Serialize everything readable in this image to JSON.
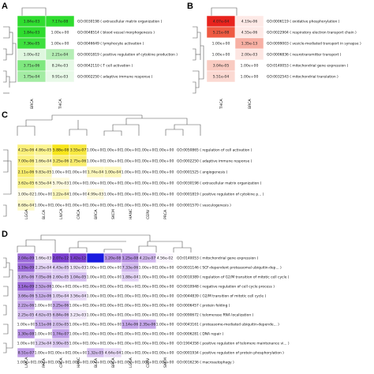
{
  "panels": [
    {
      "label": "A",
      "col_labels": [
        "BRCA",
        "THCA"
      ],
      "rows": [
        {
          "term": "GO:0030198 ( extracellular matrix organization )",
          "values": [
            "1.84e-03",
            "7.17e-08"
          ],
          "colors": [
            "#2fdc2f",
            "#2fdc2f"
          ]
        },
        {
          "term": "GO:0048514 ( blood vessel morphogenesis )",
          "values": [
            "1.84e-03",
            "1.00e+00"
          ],
          "colors": [
            "#2fdc2f",
            "#ffffff"
          ]
        },
        {
          "term": "GO:0046649 ( lymphocyte activation )",
          "values": [
            "7.36e-05",
            "1.00e+00"
          ],
          "colors": [
            "#3ee03e",
            "#ffffff"
          ]
        },
        {
          "term": "GO:0001819 ( positive regulation of cytokine production )",
          "values": [
            "1.00e-02",
            "2.21e-04"
          ],
          "colors": [
            "#dff7df",
            "#b5eeb5"
          ]
        },
        {
          "term": "GO:0042110 ( T cell activation )",
          "values": [
            "3.71e-06",
            "8.24e-03"
          ],
          "colors": [
            "#7fe87f",
            "#e6f9e6"
          ]
        },
        {
          "term": "GO:0002250 ( adaptive immune response )",
          "values": [
            "1.75e-04",
            "9.91e-03"
          ],
          "colors": [
            "#a3eca3",
            "#e8f9e8"
          ]
        }
      ]
    },
    {
      "label": "B",
      "col_labels": [
        "THCA",
        "BRCA"
      ],
      "rows": [
        {
          "term": "GO:0006119 ( oxidative phosphorylation )",
          "values": [
            "4.07e-04",
            "4.19e-06"
          ],
          "colors": [
            "#e8231d",
            "#fde9e6"
          ]
        },
        {
          "term": "GO:0022904 ( respiratory electron transport chain )",
          "values": [
            "5.21e-08",
            "4.55e-06"
          ],
          "colors": [
            "#ef5a42",
            "#fde9e6"
          ]
        },
        {
          "term": "GO:0099003 ( vesicle-mediated transport in synapse )",
          "values": [
            "1.00e+00",
            "1.35e-13"
          ],
          "colors": [
            "#ffffff",
            "#f7b0a4"
          ]
        },
        {
          "term": "GO:0006836 ( neurotransmitter transport )",
          "values": [
            "1.00e+00",
            "2.00e-03"
          ],
          "colors": [
            "#ffffff",
            "#fde6e2"
          ]
        },
        {
          "term": "GO:0140053 ( mitochondrial gene expression )",
          "values": [
            "3.04e-05",
            "1.00e+00"
          ],
          "colors": [
            "#f9cbc1",
            "#ffffff"
          ]
        },
        {
          "term": "GO:0032543 ( mitochondrial translation )",
          "values": [
            "5.51e-04",
            "1.00e+00"
          ],
          "colors": [
            "#fbd9d2",
            "#ffffff"
          ]
        }
      ]
    },
    {
      "label": "C",
      "col_labels": [
        "LGGA",
        "BLCA",
        "LIVCA",
        "CRCA",
        "BRCA",
        "SKCM",
        "HANC",
        "CERV",
        "PRCA"
      ],
      "rows": [
        {
          "term": "GO:0050865 ( regulation of cell activation )",
          "values": [
            "4.23e-06",
            "4.86e-05",
            "5.88e-08",
            "3.55e-07",
            "1.00e+00",
            "1.00e+00",
            "1.00e+00",
            "1.00e+00",
            "1.00e+00"
          ],
          "colors": [
            "#fbf07a",
            "#fbf490",
            "#f8e61a",
            "#f8e940",
            "#ffffff",
            "#ffffff",
            "#ffffff",
            "#ffffff",
            "#ffffff"
          ]
        },
        {
          "term": "GO:0002250 ( adaptive immune response )",
          "values": [
            "7.00e-06",
            "1.66e-04",
            "3.25e-06",
            "2.75e-06",
            "1.00e+00",
            "1.00e+00",
            "1.00e+00",
            "1.00e+00",
            "1.00e+00"
          ],
          "colors": [
            "#fbf07a",
            "#fdf7b4",
            "#faee6e",
            "#faee6e",
            "#ffffff",
            "#ffffff",
            "#ffffff",
            "#ffffff",
            "#ffffff"
          ]
        },
        {
          "term": "GO:0001525 ( angiogenesis )",
          "values": [
            "2.11e-06",
            "9.83e-05",
            "1.00e+00",
            "1.00e+00",
            "1.74e-04",
            "1.00e-04",
            "1.00e+00",
            "1.00e+00",
            "1.00e+00"
          ],
          "colors": [
            "#faee6e",
            "#fdf7b4",
            "#ffffff",
            "#ffffff",
            "#fdf8bc",
            "#fdf8bc",
            "#ffffff",
            "#ffffff",
            "#ffffff"
          ]
        },
        {
          "term": "GO:0030198 ( extracellular matrix organization )",
          "values": [
            "3.62e-05",
            "6.55e-04",
            "5.70e-03",
            "1.00e+00",
            "1.00e+00",
            "1.00e+00",
            "1.00e+00",
            "1.00e+00",
            "1.00e+00"
          ],
          "colors": [
            "#fbf490",
            "#fdf9c8",
            "#fefbe0",
            "#ffffff",
            "#ffffff",
            "#ffffff",
            "#ffffff",
            "#ffffff",
            "#ffffff"
          ]
        },
        {
          "term": "GO:0001819 ( positive regulation of cytokine p... )",
          "values": [
            "1.00e-02",
            "1.00e+00",
            "1.22e-04",
            "1.00e+00",
            "4.99e-03",
            "1.00e+00",
            "1.00e+00",
            "1.00e+00",
            "1.00e+00"
          ],
          "colors": [
            "#fefbe4",
            "#ffffff",
            "#fdf8bc",
            "#ffffff",
            "#fefbe0",
            "#ffffff",
            "#ffffff",
            "#ffffff",
            "#ffffff"
          ]
        },
        {
          "term": "GO:0001570 ( vasculogenesis )",
          "values": [
            "8.68e-04",
            "1.00e+00",
            "1.00e+00",
            "1.00e+00",
            "1.00e+00",
            "1.00e+00",
            "1.00e+00",
            "1.00e+00",
            "1.00e+00"
          ],
          "colors": [
            "#fdf9c8",
            "#ffffff",
            "#ffffff",
            "#ffffff",
            "#ffffff",
            "#ffffff",
            "#ffffff",
            "#ffffff",
            "#ffffff"
          ]
        }
      ]
    },
    {
      "label": "D",
      "col_labels": [
        "LIVCA",
        "PACA",
        "CRCA",
        "HANC",
        "BLCA",
        "BRCA",
        "LGGA",
        "CERV",
        "SKCM"
      ],
      "rows": [
        {
          "term": "GO:0140053 ( mitochondrial gene expression )",
          "values": [
            "2.04e-09",
            "1.66e-03",
            "2.07e-12",
            "1.42e-12",
            "",
            "1.20e-08",
            "1.25e-08",
            "4.22e-07",
            "4.56e-02"
          ],
          "colors": [
            "#9b6ad9",
            "#efe4f9",
            "#7b3fd0",
            "#7b3fd0",
            "#1a1adf",
            "#b690e3",
            "#b690e3",
            "#d2b9ee",
            "#faf5fe"
          ]
        },
        {
          "term": "GO:0031146 ( SCF-dependent proteasomal ubiquitin-dep... )",
          "values": [
            "1.19e-09",
            "2.25e-04",
            "4.43e-05",
            "1.92e-03",
            "1.00e+00",
            "1.00e+00",
            "7.33e-06",
            "1.00e+00",
            "1.00e+00"
          ],
          "colors": [
            "#9b6ad9",
            "#e3d3f5",
            "#dcc9f3",
            "#efe4f9",
            "#ffffff",
            "#ffffff",
            "#d2b9ee",
            "#ffffff",
            "#ffffff"
          ]
        },
        {
          "term": "GO:0010389 ( regulation of G2/M transition of mitotic cell cycle )",
          "values": [
            "1.87e-06",
            "7.05e-06",
            "2.60e-05",
            "1.04e-05",
            "1.00e+00",
            "1.00e+00",
            "1.88e-04",
            "1.00e+00",
            "1.00e+00"
          ],
          "colors": [
            "#c5a6ea",
            "#d2b9ee",
            "#dcc9f3",
            "#d6c0f0",
            "#ffffff",
            "#ffffff",
            "#e3d3f5",
            "#ffffff",
            "#ffffff"
          ]
        },
        {
          "term": "GO:0010948 ( negative regulation of cell cycle process )",
          "values": [
            "1.14e-09",
            "2.52e-06",
            "1.00e+00",
            "1.00e+00",
            "1.00e+00",
            "1.00e+00",
            "1.00e+00",
            "1.00e+00",
            "1.00e+00"
          ],
          "colors": [
            "#9b6ad9",
            "#c5a6ea",
            "#ffffff",
            "#ffffff",
            "#ffffff",
            "#ffffff",
            "#ffffff",
            "#ffffff",
            "#ffffff"
          ]
        },
        {
          "term": "GO:0044839 ( G2/M transition of mitotic cell cycle )",
          "values": [
            "3.66e-06",
            "5.12e-06",
            "1.05e-04",
            "3.56e-04",
            "1.00e+00",
            "1.00e+00",
            "1.00e+00",
            "1.00e+00",
            "1.00e+00"
          ],
          "colors": [
            "#c5a6ea",
            "#cbb0ec",
            "#e3d3f5",
            "#e8daf7",
            "#ffffff",
            "#ffffff",
            "#ffffff",
            "#ffffff",
            "#ffffff"
          ]
        },
        {
          "term": "GO:0006457 ( protein folding )",
          "values": [
            "2.22e-06",
            "1.00e+00",
            "3.25e-06",
            "1.00e+00",
            "1.00e+00",
            "1.00e+00",
            "1.00e+00",
            "1.00e+00",
            "1.00e+00"
          ],
          "colors": [
            "#c5a6ea",
            "#ffffff",
            "#c5a6ea",
            "#ffffff",
            "#ffffff",
            "#ffffff",
            "#ffffff",
            "#ffffff",
            "#ffffff"
          ]
        },
        {
          "term": "GO:0090672 ( telomerase RNA localization )",
          "values": [
            "2.25e-05",
            "4.62e-05",
            "6.84e-06",
            "3.23e-03",
            "1.00e+00",
            "1.00e+00",
            "1.00e+00",
            "1.00e+00",
            "1.00e+00"
          ],
          "colors": [
            "#d6c0f0",
            "#dcc9f3",
            "#d2b9ee",
            "#f2eafb",
            "#ffffff",
            "#ffffff",
            "#ffffff",
            "#ffffff",
            "#ffffff"
          ]
        },
        {
          "term": "GO:0043161 ( proteasome-mediated ubiquitin-depende... )",
          "values": [
            "1.00e+00",
            "5.11e-06",
            "2.03e-05",
            "1.00e+00",
            "1.00e+00",
            "1.00e+00",
            "1.14e-06",
            "2.35e-06",
            "1.00e+00"
          ],
          "colors": [
            "#ffffff",
            "#cbb0ec",
            "#d6c0f0",
            "#ffffff",
            "#ffffff",
            "#ffffff",
            "#c5a6ea",
            "#c5a6ea",
            "#ffffff"
          ]
        },
        {
          "term": "GO:0006281 ( DNA repair )",
          "values": [
            "1.30e-08",
            "1.00e+00",
            "1.74e-07",
            "1.00e+00",
            "1.00e+00",
            "1.00e+00",
            "1.00e+00",
            "1.00e+00",
            "1.00e+00"
          ],
          "colors": [
            "#b690e3",
            "#ffffff",
            "#c09ee8",
            "#ffffff",
            "#ffffff",
            "#ffffff",
            "#ffffff",
            "#ffffff",
            "#ffffff"
          ]
        },
        {
          "term": "GO:1904358 ( positive regulation of telomere maintenance vi... )",
          "values": [
            "1.00e+00",
            "1.23e-04",
            "3.90e-05",
            "1.00e+00",
            "1.00e+00",
            "1.00e+00",
            "1.00e+00",
            "1.00e+00",
            "1.00e+00"
          ],
          "colors": [
            "#ffffff",
            "#e3d3f5",
            "#dcc9f3",
            "#ffffff",
            "#ffffff",
            "#ffffff",
            "#ffffff",
            "#ffffff",
            "#ffffff"
          ]
        },
        {
          "term": "GO:0001934 ( positive regulation of protein phosphorylation )",
          "values": [
            "8.51e-07",
            "1.00e+00",
            "1.00e+00",
            "1.00e+00",
            "1.32e-05",
            "4.64e-04",
            "1.00e+00",
            "1.00e+00",
            "1.00e+00"
          ],
          "colors": [
            "#c09ee8",
            "#ffffff",
            "#ffffff",
            "#ffffff",
            "#d6c0f0",
            "#e8daf7",
            "#ffffff",
            "#ffffff",
            "#ffffff"
          ]
        },
        {
          "term": "GO:0016236 ( macroautophagy )",
          "values": [
            "1.00e+00",
            "1.00e+00",
            "1.00e+00",
            "1.00e+00",
            "1.00e+00",
            "1.00e+00",
            "1.00e+00",
            "1.00e+00",
            "1.00e+00"
          ],
          "colors": [
            "#ffffff",
            "#ffffff",
            "#ffffff",
            "#ffffff",
            "#ffffff",
            "#ffffff",
            "#ffffff",
            "#ffffff",
            "#ffffff"
          ]
        }
      ]
    }
  ]
}
